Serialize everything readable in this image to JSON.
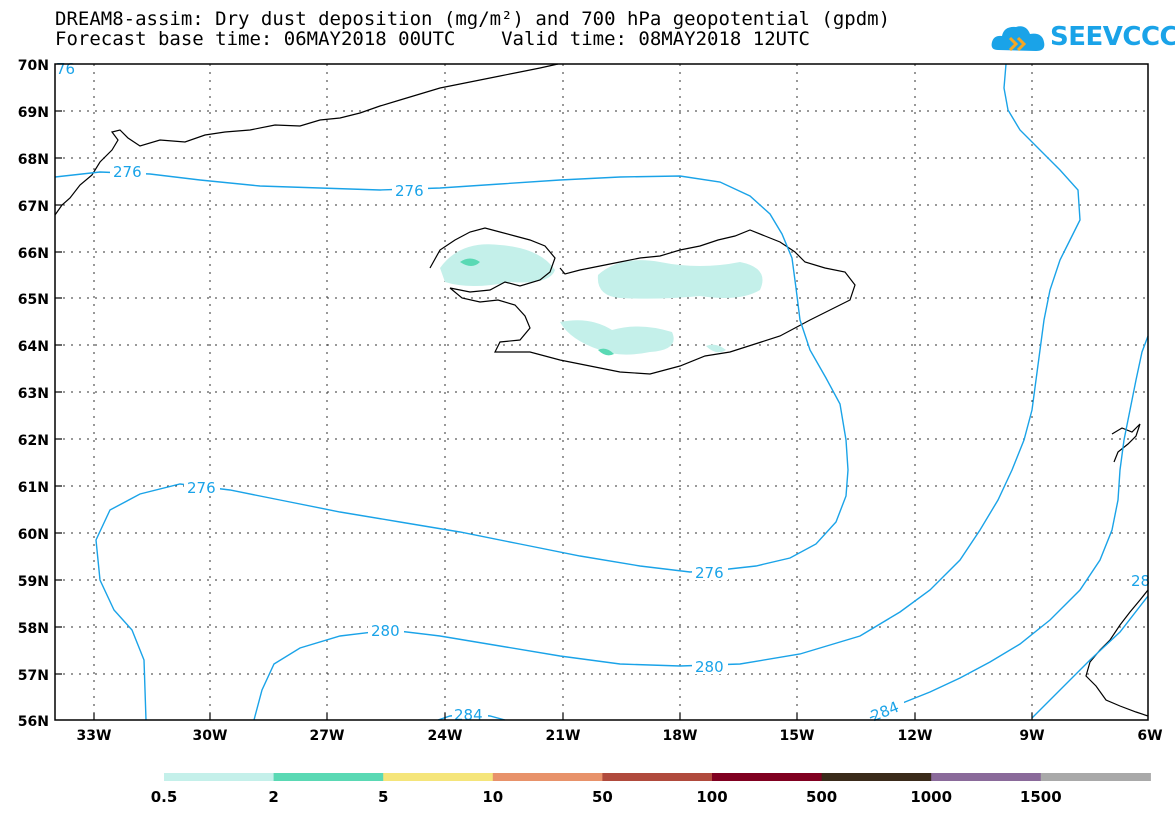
{
  "title": {
    "line1": "DREAM8-assim: Dry dust deposition (mg/m²) and 700 hPa geopotential (gpdm)",
    "line2": "Forecast base time: 06MAY2018 00UTC    Valid time: 08MAY2018 12UTC"
  },
  "logo": {
    "text": "SEEVCCC",
    "icon": "cloud-icon"
  },
  "axes": {
    "lat_labels": [
      "70N",
      "69N",
      "68N",
      "67N",
      "66N",
      "65N",
      "64N",
      "63N",
      "62N",
      "61N",
      "60N",
      "59N",
      "58N",
      "57N",
      "56N"
    ],
    "lon_labels": [
      "33W",
      "30W",
      "27W",
      "24W",
      "21W",
      "18W",
      "15W",
      "12W",
      "9W",
      "6W"
    ]
  },
  "contour_labels": [
    "276",
    "276",
    "276",
    "276",
    "280",
    "280",
    "284",
    "284",
    "28",
    "76"
  ],
  "legend": {
    "colors": [
      "#c4f0ea",
      "#5ad9b4",
      "#f5e57a",
      "#e8926a",
      "#b04a3c",
      "#800020",
      "#3a2a1a",
      "#8a6a9a",
      "#a9a9a9"
    ],
    "labels": [
      "0.5",
      "2",
      "5",
      "10",
      "50",
      "100",
      "500",
      "1000",
      "1500"
    ]
  },
  "colors": {
    "contour": "#1aa3e8",
    "dust_low": "#c4f0ea",
    "dust_mid": "#5ad9b4"
  }
}
